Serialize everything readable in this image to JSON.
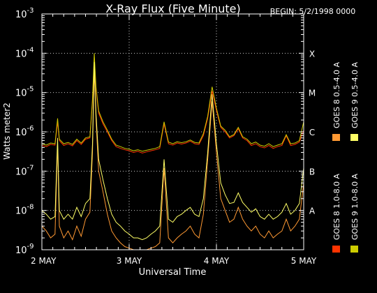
{
  "chart_data": {
    "type": "line",
    "title": "X-Ray Flux (Five Minute)",
    "begin_label": "BEGIN: 5/2/1998 0000",
    "xlabel": "Universal Time",
    "ylabel": "Watts meter2",
    "y_scale": "log",
    "ylim": [
      1e-09,
      0.001
    ],
    "y_tick_labels": [
      {
        "base": "10",
        "exp": "-9",
        "value": 1e-09
      },
      {
        "base": "10",
        "exp": "-8",
        "value": 1e-08
      },
      {
        "base": "10",
        "exp": "-7",
        "value": 1e-07
      },
      {
        "base": "10",
        "exp": "-6",
        "value": 1e-06
      },
      {
        "base": "10",
        "exp": "-5",
        "value": 1e-05
      },
      {
        "base": "10",
        "exp": "-4",
        "value": 0.0001
      },
      {
        "base": "10",
        "exp": "-3",
        "value": 0.001
      }
    ],
    "flare_classes": [
      {
        "label": "A",
        "value": 1e-08
      },
      {
        "label": "B",
        "value": 1e-07
      },
      {
        "label": "C",
        "value": 1e-06
      },
      {
        "label": "M",
        "value": 1e-05
      },
      {
        "label": "X",
        "value": 0.0001
      }
    ],
    "x_range_days": [
      0,
      3
    ],
    "x_tick_labels": [
      {
        "label": "2 MAY",
        "day": 0
      },
      {
        "label": "3 MAY",
        "day": 1
      },
      {
        "label": "4 MAY",
        "day": 2
      },
      {
        "label": "5 MAY",
        "day": 3
      }
    ],
    "grid": "dotted",
    "legend_position": "right, vertical",
    "series": [
      {
        "name": "GOES 8 1.0-8.0 A",
        "color": "#ff3300",
        "x": [
          0,
          0.05,
          0.1,
          0.15,
          0.18,
          0.2,
          0.25,
          0.3,
          0.35,
          0.4,
          0.45,
          0.5,
          0.55,
          0.58,
          0.6,
          0.62,
          0.65,
          0.7,
          0.75,
          0.8,
          0.85,
          0.9,
          0.95,
          1.0,
          1.05,
          1.1,
          1.15,
          1.2,
          1.25,
          1.3,
          1.35,
          1.4,
          1.45,
          1.5,
          1.55,
          1.6,
          1.65,
          1.7,
          1.75,
          1.8,
          1.85,
          1.9,
          1.95,
          2.0,
          2.05,
          2.1,
          2.15,
          2.2,
          2.25,
          2.3,
          2.35,
          2.4,
          2.45,
          2.5,
          2.55,
          2.6,
          2.65,
          2.7,
          2.75,
          2.8,
          2.85,
          2.9,
          2.95,
          3.0
        ],
        "values": [
          4.5e-07,
          4.2e-07,
          4.8e-07,
          4.6e-07,
          1.8e-06,
          6e-07,
          4.5e-07,
          5e-07,
          4.4e-07,
          6e-07,
          4.8e-07,
          6.5e-07,
          7e-07,
          6e-06,
          8e-05,
          1.2e-05,
          3e-06,
          1.6e-06,
          1e-06,
          6e-07,
          4.2e-07,
          3.8e-07,
          3.5e-07,
          3.3e-07,
          3e-07,
          3.2e-07,
          2.9e-07,
          3.1e-07,
          3.3e-07,
          3.5e-07,
          3.8e-07,
          1.6e-06,
          5e-07,
          4.6e-07,
          5.2e-07,
          4.9e-07,
          5.2e-07,
          5.8e-07,
          5e-07,
          4.8e-07,
          8e-07,
          2.2e-06,
          1.1e-05,
          3.5e-06,
          1.3e-06,
          1e-06,
          7e-07,
          8e-07,
          1.2e-06,
          7e-07,
          6e-07,
          4.5e-07,
          5e-07,
          4.2e-07,
          3.9e-07,
          4.5e-07,
          3.8e-07,
          4.2e-07,
          4.5e-07,
          8e-07,
          4.5e-07,
          4.8e-07,
          5.5e-07,
          1.1e-06
        ]
      },
      {
        "name": "GOES 8 0.5-4.0 A",
        "color": "#ff9933",
        "x": [
          0,
          0.05,
          0.1,
          0.15,
          0.18,
          0.2,
          0.25,
          0.3,
          0.35,
          0.4,
          0.45,
          0.5,
          0.55,
          0.58,
          0.6,
          0.62,
          0.65,
          0.7,
          0.75,
          0.8,
          0.85,
          0.9,
          0.95,
          1.0,
          1.05,
          1.1,
          1.15,
          1.2,
          1.25,
          1.3,
          1.35,
          1.4,
          1.45,
          1.5,
          1.55,
          1.6,
          1.65,
          1.7,
          1.75,
          1.8,
          1.85,
          1.9,
          1.95,
          2.0,
          2.05,
          2.1,
          2.15,
          2.2,
          2.25,
          2.3,
          2.35,
          2.4,
          2.45,
          2.5,
          2.55,
          2.6,
          2.65,
          2.7,
          2.75,
          2.8,
          2.85,
          2.9,
          2.95,
          3.0
        ],
        "values": [
          4e-09,
          3e-09,
          2e-09,
          2.5e-09,
          5e-07,
          4e-09,
          2e-09,
          3e-09,
          1.8e-09,
          4e-09,
          2.2e-09,
          6e-09,
          9e-09,
          3e-07,
          4e-05,
          2e-06,
          1e-07,
          3e-08,
          8e-09,
          3e-09,
          2e-09,
          1.5e-09,
          1.2e-09,
          1.1e-09,
          1e-09,
          1e-09,
          1e-09,
          1e-09,
          1.1e-09,
          1.2e-09,
          1.5e-09,
          1.2e-07,
          2e-09,
          1.5e-09,
          2e-09,
          2.5e-09,
          3e-09,
          4e-09,
          2.5e-09,
          2e-09,
          8e-09,
          2e-07,
          6e-06,
          3e-07,
          2e-08,
          1e-08,
          5e-09,
          6e-09,
          1.2e-08,
          6e-09,
          4e-09,
          3e-09,
          4e-09,
          2.5e-09,
          2e-09,
          3e-09,
          2e-09,
          2.5e-09,
          3e-09,
          6e-09,
          3e-09,
          4e-09,
          6e-09,
          5e-08
        ]
      },
      {
        "name": "GOES 9 1.0-8.0 A",
        "color": "#cccc00",
        "x": [
          0,
          0.05,
          0.1,
          0.15,
          0.18,
          0.2,
          0.25,
          0.3,
          0.35,
          0.4,
          0.45,
          0.5,
          0.55,
          0.58,
          0.6,
          0.62,
          0.65,
          0.7,
          0.75,
          0.8,
          0.85,
          0.9,
          0.95,
          1.0,
          1.05,
          1.1,
          1.15,
          1.2,
          1.25,
          1.3,
          1.35,
          1.4,
          1.45,
          1.5,
          1.55,
          1.6,
          1.65,
          1.7,
          1.75,
          1.8,
          1.85,
          1.9,
          1.95,
          2.0,
          2.05,
          2.1,
          2.15,
          2.2,
          2.25,
          2.3,
          2.35,
          2.4,
          2.45,
          2.5,
          2.55,
          2.6,
          2.65,
          2.7,
          2.75,
          2.8,
          2.85,
          2.9,
          2.95,
          3.0
        ],
        "values": [
          5e-07,
          4.6e-07,
          5.2e-07,
          5e-07,
          2.2e-06,
          6.5e-07,
          5e-07,
          5.4e-07,
          4.8e-07,
          6.5e-07,
          5.2e-07,
          7e-07,
          7.5e-07,
          7e-06,
          0.0001,
          1.4e-05,
          3.4e-06,
          1.8e-06,
          1.1e-06,
          6.5e-07,
          4.6e-07,
          4.2e-07,
          3.8e-07,
          3.6e-07,
          3.3e-07,
          3.5e-07,
          3.2e-07,
          3.4e-07,
          3.6e-07,
          3.8e-07,
          4.2e-07,
          1.8e-06,
          5.5e-07,
          5e-07,
          5.6e-07,
          5.3e-07,
          5.6e-07,
          6.2e-07,
          5.4e-07,
          5.2e-07,
          9e-07,
          2.5e-06,
          1.4e-05,
          4e-06,
          1.4e-06,
          1.1e-06,
          7.5e-07,
          8.5e-07,
          1.3e-06,
          7.5e-07,
          6.5e-07,
          5e-07,
          5.5e-07,
          4.6e-07,
          4.3e-07,
          5e-07,
          4.2e-07,
          4.6e-07,
          5e-07,
          8.5e-07,
          5e-07,
          5.2e-07,
          6e-07,
          1.8e-06
        ]
      },
      {
        "name": "GOES 9 0.5-4.0 A",
        "color": "#ffff66",
        "x": [
          0,
          0.05,
          0.1,
          0.15,
          0.18,
          0.2,
          0.25,
          0.3,
          0.35,
          0.4,
          0.45,
          0.5,
          0.55,
          0.58,
          0.6,
          0.62,
          0.65,
          0.7,
          0.75,
          0.8,
          0.85,
          0.9,
          0.95,
          1.0,
          1.05,
          1.1,
          1.15,
          1.2,
          1.25,
          1.3,
          1.35,
          1.4,
          1.45,
          1.5,
          1.55,
          1.6,
          1.65,
          1.7,
          1.75,
          1.8,
          1.85,
          1.9,
          1.95,
          2.0,
          2.05,
          2.1,
          2.15,
          2.2,
          2.25,
          2.3,
          2.35,
          2.4,
          2.45,
          2.5,
          2.55,
          2.6,
          2.65,
          2.7,
          2.75,
          2.8,
          2.85,
          2.9,
          2.95,
          3.0
        ],
        "values": [
          1e-08,
          8e-09,
          6e-09,
          7e-09,
          7e-07,
          1e-08,
          6e-09,
          8e-09,
          6e-09,
          1.2e-08,
          7e-09,
          1.5e-08,
          2e-08,
          5e-07,
          6e-05,
          3e-06,
          2e-07,
          6e-08,
          2e-08,
          8e-09,
          5e-09,
          4e-09,
          3e-09,
          2.5e-09,
          2e-09,
          2e-09,
          1.8e-09,
          2e-09,
          2.5e-09,
          3e-09,
          4e-09,
          2e-07,
          6e-09,
          5e-09,
          7e-09,
          8e-09,
          1e-08,
          1.2e-08,
          8e-09,
          7e-09,
          2e-08,
          3e-07,
          9e-06,
          5e-07,
          5e-08,
          2.5e-08,
          1.5e-08,
          1.6e-08,
          2.8e-08,
          1.6e-08,
          1.2e-08,
          9e-09,
          1.1e-08,
          7e-09,
          6e-09,
          8e-09,
          6e-09,
          7e-09,
          9e-09,
          1.5e-08,
          8e-09,
          1e-08,
          1.5e-08,
          1.2e-07
        ]
      }
    ]
  }
}
